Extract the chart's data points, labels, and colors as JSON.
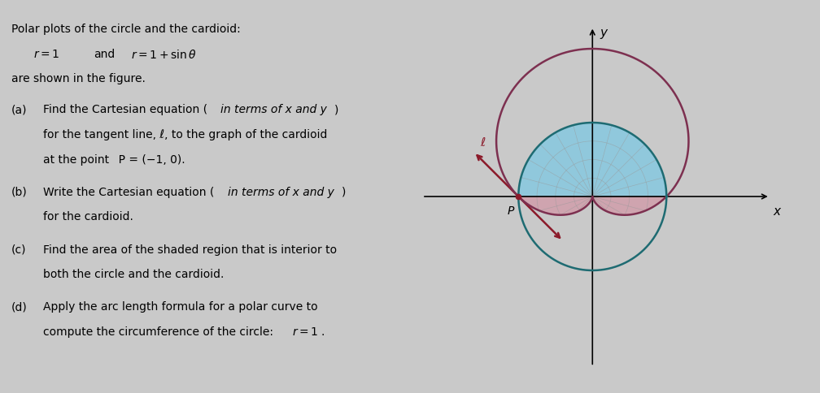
{
  "background_color": "#c9c9c9",
  "fig_width": 10.08,
  "fig_height": 4.84,
  "circle_color": "#7d3050",
  "cardioid_color": "#1e6b72",
  "blue_fill": "#7ec8e3",
  "pink_fill": "#d4879a",
  "blue_fill_alpha": 0.75,
  "pink_fill_alpha": 0.55,
  "grid_color": "#999999",
  "tangent_color": "#8b1a2a",
  "plot_xlim": [
    -2.5,
    2.5
  ],
  "plot_ylim": [
    -2.5,
    2.5
  ],
  "axis_lw": 1.2,
  "curve_lw": 1.8
}
